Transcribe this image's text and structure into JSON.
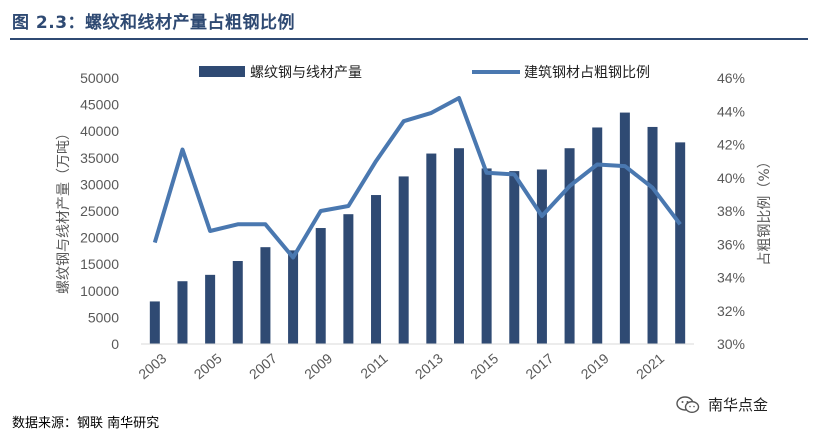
{
  "figure_title": "图 2.3：螺纹和线材产量占粗钢比例",
  "source_note": "数据来源：钢联  南华研究",
  "watermark": {
    "text": "南华点金",
    "icon": "wechat-icon"
  },
  "colors": {
    "bar": "#2f4a73",
    "line": "#4a78b0",
    "title": "#2f4a73",
    "axis_text": "#595959"
  },
  "chart_data": {
    "type": "bar+line",
    "title": "图 2.3：螺纹和线材产量占粗钢比例",
    "categories": [
      "2003",
      "2004",
      "2005",
      "2006",
      "2007",
      "2008",
      "2009",
      "2010",
      "2011",
      "2012",
      "2013",
      "2014",
      "2015",
      "2016",
      "2017",
      "2018",
      "2019",
      "2020",
      "2021",
      "2022"
    ],
    "x_tick_labels": [
      "2003",
      "2005",
      "2007",
      "2009",
      "2011",
      "2013",
      "2015",
      "2017",
      "2019",
      "2021"
    ],
    "series": [
      {
        "name": "螺纹钢与线材产量",
        "type": "bar",
        "axis": "left",
        "values": [
          8000,
          11800,
          13000,
          15600,
          18200,
          17600,
          21800,
          24400,
          28000,
          31500,
          35800,
          36800,
          33000,
          32500,
          32800,
          36800,
          40700,
          43500,
          40800,
          37900
        ]
      },
      {
        "name": "建筑钢材占粗钢比例",
        "type": "line",
        "axis": "right",
        "values": [
          36.1,
          41.7,
          36.8,
          37.2,
          37.2,
          35.2,
          38.0,
          38.3,
          41.0,
          43.4,
          43.9,
          44.8,
          40.3,
          40.2,
          37.7,
          39.5,
          40.8,
          40.7,
          39.4,
          37.2
        ]
      }
    ],
    "y_left": {
      "label": "螺纹钢与线材产量（万吨）",
      "lim": [
        0,
        50000
      ],
      "ticks": [
        "0",
        "5000",
        "10000",
        "15000",
        "20000",
        "25000",
        "30000",
        "35000",
        "40000",
        "45000",
        "50000"
      ]
    },
    "y_right": {
      "label": "占粗钢比例（%）",
      "lim": [
        30,
        46
      ],
      "ticks": [
        "30%",
        "32%",
        "34%",
        "36%",
        "38%",
        "40%",
        "42%",
        "44%",
        "46%"
      ]
    },
    "legend": {
      "placement": "top"
    },
    "grid": false
  }
}
